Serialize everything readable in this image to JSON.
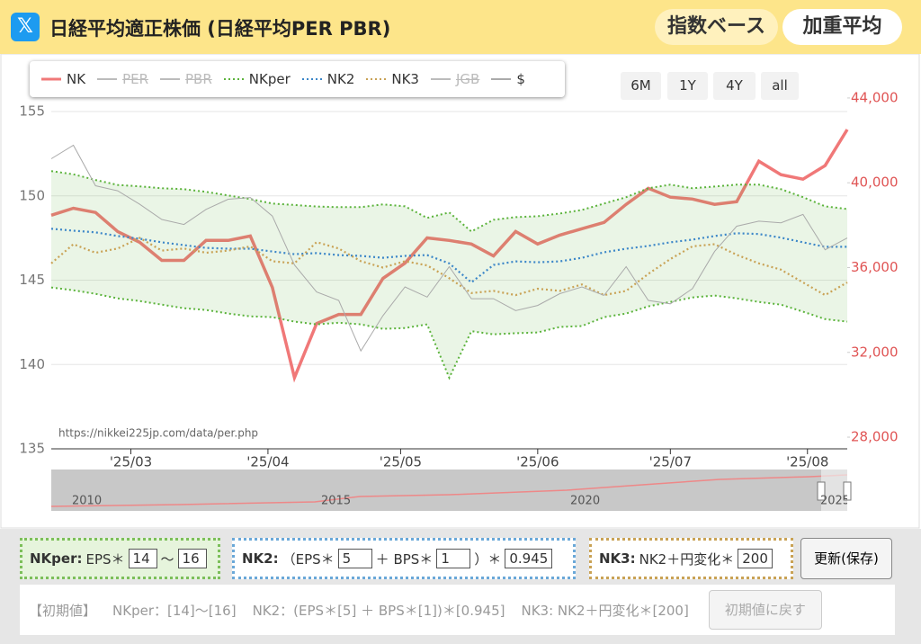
{
  "header": {
    "title": "日経平均適正株価 (日経平均PER PBR)",
    "buttons": [
      "指数ベース",
      "加重平均"
    ]
  },
  "range_buttons": [
    "6M",
    "1Y",
    "4Y",
    "all"
  ],
  "watermark": "https://nikkei225jp.com/data/per.php",
  "navigator": {
    "labels": [
      "2010",
      "2015",
      "2020",
      "2025"
    ]
  },
  "chart_data": {
    "type": "line",
    "x": [
      10,
      15,
      20,
      25,
      30,
      35,
      40,
      45,
      50,
      55,
      60,
      65,
      70,
      75,
      80,
      85,
      90,
      95,
      100,
      105,
      110,
      115,
      120,
      125,
      130,
      135,
      140,
      145,
      150,
      155,
      160,
      165,
      170,
      175,
      180,
      185,
      190
    ],
    "xlim": [
      10,
      190
    ],
    "xticks": [
      {
        "value": 28,
        "label": "'25/03"
      },
      {
        "value": 59,
        "label": "'25/04"
      },
      {
        "value": 89,
        "label": "'25/05"
      },
      {
        "value": 120,
        "label": "'25/06"
      },
      {
        "value": 150,
        "label": "'25/07"
      },
      {
        "value": 181,
        "label": "'25/08"
      }
    ],
    "ylim": [
      135,
      155
    ],
    "yticks": [
      135,
      140,
      145,
      150,
      155
    ],
    "y2lim": [
      27450,
      43360
    ],
    "y2ticks": [
      {
        "value": 28000,
        "label": "28,000"
      },
      {
        "value": 32000,
        "label": "32,000"
      },
      {
        "value": 36000,
        "label": "36,000"
      },
      {
        "value": 40000,
        "label": "40,000"
      },
      {
        "value": 44000,
        "label": "44,000"
      }
    ],
    "grid": true,
    "series": [
      {
        "name": "NK",
        "color": "#f07878",
        "style": "solid",
        "axis": "y2",
        "visible": true,
        "values": [
          38470,
          38800,
          38600,
          37700,
          37190,
          36340,
          36340,
          37280,
          37280,
          37490,
          35060,
          30810,
          33360,
          33790,
          33790,
          35490,
          36210,
          37400,
          37280,
          37110,
          36550,
          37700,
          37110,
          37530,
          37830,
          38130,
          38980,
          39740,
          39320,
          39230,
          38980,
          39110,
          41020,
          40380,
          40170,
          40810,
          42510
        ]
      },
      {
        "name": "PER",
        "color": "#bbbbbb",
        "visible": false
      },
      {
        "name": "PBR",
        "color": "#bbbbbb",
        "visible": false
      },
      {
        "name": "NKper",
        "color": "#5bb33b",
        "style": "dotted",
        "axis": "y2",
        "visible": true,
        "band": true,
        "high": [
          40550,
          40400,
          40130,
          39900,
          39830,
          39740,
          39700,
          39570,
          39400,
          39230,
          39020,
          38950,
          38880,
          38850,
          38850,
          38980,
          38890,
          38340,
          38600,
          37700,
          38250,
          38380,
          38420,
          38550,
          38720,
          39020,
          39320,
          39740,
          39910,
          39740,
          39820,
          39910,
          39910,
          39700,
          39320,
          38890,
          38760
        ],
        "low": [
          35060,
          34930,
          34760,
          34550,
          34420,
          34250,
          34080,
          34000,
          33830,
          33700,
          33660,
          33450,
          33320,
          33400,
          33320,
          33110,
          33150,
          33320,
          30800,
          33000,
          32850,
          32900,
          32940,
          33200,
          33240,
          33660,
          33830,
          34170,
          34380,
          34590,
          34680,
          34550,
          34380,
          34250,
          33920,
          33570,
          33450
        ]
      },
      {
        "name": "NK2",
        "color": "#3b86c8",
        "style": "dotted",
        "axis": "y2",
        "visible": true,
        "values": [
          37830,
          37740,
          37660,
          37490,
          37360,
          37190,
          37060,
          36930,
          36890,
          36890,
          36760,
          36630,
          36680,
          36590,
          36550,
          36460,
          36550,
          36590,
          36200,
          35300,
          36120,
          36290,
          36250,
          36290,
          36460,
          36720,
          36890,
          37020,
          37190,
          37320,
          37490,
          37620,
          37580,
          37410,
          37190,
          36980,
          36980
        ]
      },
      {
        "name": "NK3",
        "color": "#c9a255",
        "style": "dotted",
        "axis": "y2",
        "visible": true,
        "values": [
          36200,
          37100,
          36700,
          36900,
          37400,
          36800,
          36900,
          36700,
          36800,
          37000,
          36300,
          36200,
          37200,
          36900,
          36300,
          36000,
          36300,
          36100,
          35500,
          34800,
          34900,
          34700,
          35000,
          34900,
          35200,
          34700,
          34900,
          35700,
          36400,
          37000,
          37100,
          36600,
          36200,
          35900,
          35300,
          34700,
          35300
        ]
      },
      {
        "name": "JGB",
        "color": "#bbbbbb",
        "visible": false
      },
      {
        "name": "$",
        "color": "#aaaaaa",
        "style": "thin",
        "axis": "y",
        "visible": true,
        "values": [
          152.2,
          153.0,
          150.6,
          150.3,
          149.5,
          148.6,
          148.3,
          149.2,
          149.8,
          149.9,
          148.8,
          145.9,
          144.3,
          143.8,
          140.8,
          142.9,
          144.6,
          144.0,
          145.8,
          143.9,
          143.9,
          143.2,
          143.5,
          144.2,
          144.6,
          144.1,
          145.8,
          143.8,
          143.6,
          144.5,
          146.7,
          148.2,
          148.5,
          148.4,
          148.9,
          146.8,
          147.5
        ]
      }
    ]
  },
  "controls": {
    "nkper": {
      "label": "NKper:",
      "text": "EPS＊",
      "min": "14",
      "sep": "〜",
      "max": "16"
    },
    "nk2": {
      "label": "NK2:",
      "t1": "（EPS＊",
      "eps": "5",
      "t2": "＋ BPS＊",
      "bps": "1",
      "t3": "）＊",
      "k": "0.945"
    },
    "nk3": {
      "label": "NK3:",
      "text": "NK2＋円変化＊",
      "v": "200"
    },
    "save": "更新(保存)",
    "defaults": [
      "【初期値】",
      "NKper：[14]〜[16]",
      "NK2：(EPS＊[5] ＋ BPS＊[1])＊[0.945]",
      "NK3: NK2＋円変化＊[200]"
    ],
    "reset": "初期値に戻す"
  }
}
